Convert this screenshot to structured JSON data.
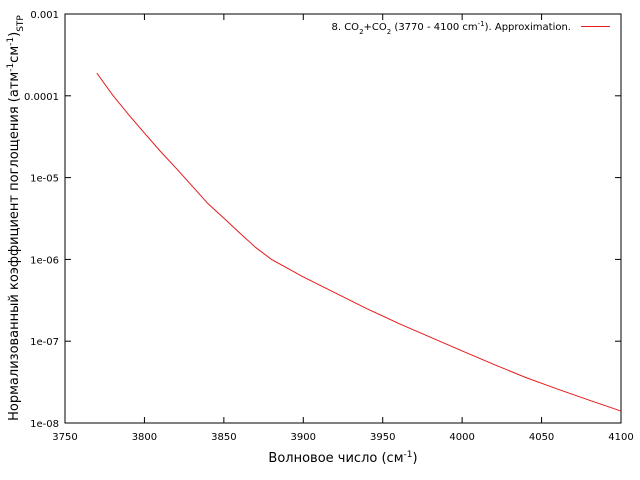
{
  "chart_data": {
    "type": "line",
    "xlabel_main": "Волновое число (см",
    "xlabel_sup": "-1",
    "xlabel_end": ")",
    "ylabel_main": "Нормализованный коэффициент поглощения (атм",
    "ylabel_sup1": "-1",
    "ylabel_mid": "см",
    "ylabel_sup2": "-1",
    "ylabel_end": ")",
    "ylabel_sub": "STP",
    "xlim": [
      3750,
      4100
    ],
    "ylim": [
      1e-08,
      0.001
    ],
    "yscale": "log",
    "grid": false,
    "legend_position": "top-right",
    "x_ticks": [
      "3750",
      "3800",
      "3850",
      "3900",
      "3950",
      "4000",
      "4050",
      "4100"
    ],
    "x_tick_values": [
      3750,
      3800,
      3850,
      3900,
      3950,
      4000,
      4050,
      4100
    ],
    "y_ticks": [
      "1e-08",
      "1e-07",
      "1e-06",
      "1e-05",
      "0.0001",
      "0.001"
    ],
    "y_tick_values": [
      1e-08,
      1e-07,
      1e-06,
      1e-05,
      0.0001,
      0.001
    ],
    "legend": {
      "p1": "8. CO",
      "s1": "2",
      "p2": "+CO",
      "s2": "2",
      "p3": " (3770 - 4100 cm",
      "s3": "-1",
      "p4": "). Approximation."
    },
    "series": [
      {
        "color": "#e41a1c",
        "x": [
          3770,
          3780,
          3790,
          3800,
          3810,
          3820,
          3830,
          3840,
          3850,
          3860,
          3870,
          3880,
          3890,
          3900,
          3920,
          3940,
          3960,
          3980,
          4000,
          4020,
          4040,
          4060,
          4080,
          4100
        ],
        "y": [
          0.00019,
          0.000102,
          5.9e-05,
          3.5e-05,
          2.1e-05,
          1.3e-05,
          7.9e-06,
          4.8e-06,
          3.2e-06,
          2.1e-06,
          1.4e-06,
          1e-06,
          7.8e-07,
          6.1e-07,
          3.9e-07,
          2.5e-07,
          1.65e-07,
          1.12e-07,
          7.6e-08,
          5.2e-08,
          3.6e-08,
          2.6e-08,
          1.9e-08,
          1.4e-08
        ]
      }
    ]
  }
}
